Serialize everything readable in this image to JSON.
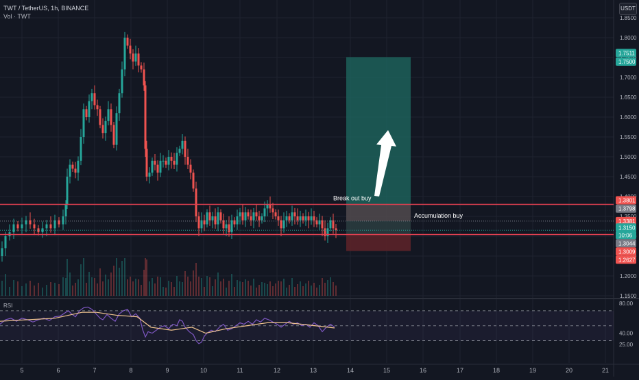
{
  "header": {
    "symbol_line": "TWT / TetherUS, 1h, BINANCE",
    "volume_line": "Vol · TWT",
    "currency_button": "USDT"
  },
  "colors": {
    "background": "#131722",
    "up": "#26a69a",
    "down": "#ef5350",
    "grid": "#1f2330",
    "resistance": "#e04050",
    "rsi_line": "#7e57c2",
    "rsi_ma": "#f2c58f",
    "target_zone": "#1f6b62",
    "entry_zone": "#514a4d",
    "stop_zone": "#5b2229"
  },
  "chart_data": {
    "type": "candlestick",
    "x_ticks": [
      "5",
      "6",
      "7",
      "8",
      "9",
      "10",
      "11",
      "12",
      "13",
      "14",
      "15",
      "16",
      "17",
      "18",
      "19",
      "20",
      "21"
    ],
    "y_ticks": [
      "1.8500",
      "1.8000",
      "1.7500",
      "1.7000",
      "1.6500",
      "1.6000",
      "1.5500",
      "1.5000",
      "1.4500",
      "1.4000",
      "1.3500",
      "1.3000",
      "1.2500",
      "1.2000",
      "1.1500"
    ],
    "ylim": [
      1.15,
      1.86
    ],
    "rsi_ticks": [
      "80.00",
      "40.00",
      "25.00"
    ],
    "rsi_ylim": [
      20,
      82
    ],
    "price_series": [
      [
        0,
        1.25
      ],
      [
        3,
        1.27
      ],
      [
        8,
        1.3
      ],
      [
        14,
        1.31
      ],
      [
        20,
        1.33
      ],
      [
        26,
        1.32
      ],
      [
        32,
        1.33
      ],
      [
        38,
        1.34
      ],
      [
        44,
        1.33
      ],
      [
        50,
        1.32
      ],
      [
        56,
        1.31
      ],
      [
        62,
        1.32
      ],
      [
        68,
        1.33
      ],
      [
        74,
        1.32
      ],
      [
        80,
        1.34
      ],
      [
        86,
        1.33
      ],
      [
        92,
        1.35
      ],
      [
        96,
        1.38
      ],
      [
        98,
        1.45
      ],
      [
        102,
        1.48
      ],
      [
        106,
        1.47
      ],
      [
        110,
        1.46
      ],
      [
        114,
        1.49
      ],
      [
        118,
        1.55
      ],
      [
        122,
        1.62
      ],
      [
        126,
        1.6
      ],
      [
        130,
        1.64
      ],
      [
        134,
        1.66
      ],
      [
        138,
        1.63
      ],
      [
        142,
        1.62
      ],
      [
        146,
        1.58
      ],
      [
        150,
        1.56
      ],
      [
        154,
        1.59
      ],
      [
        158,
        1.62
      ],
      [
        162,
        1.58
      ],
      [
        166,
        1.53
      ],
      [
        170,
        1.61
      ],
      [
        174,
        1.66
      ],
      [
        178,
        1.72
      ],
      [
        182,
        1.8
      ],
      [
        186,
        1.78
      ],
      [
        190,
        1.76
      ],
      [
        194,
        1.74
      ],
      [
        198,
        1.76
      ],
      [
        202,
        1.73
      ],
      [
        206,
        1.72
      ],
      [
        210,
        1.68
      ],
      [
        212,
        1.52
      ],
      [
        214,
        1.45
      ],
      [
        218,
        1.46
      ],
      [
        222,
        1.49
      ],
      [
        226,
        1.48
      ],
      [
        230,
        1.46
      ],
      [
        234,
        1.49
      ],
      [
        238,
        1.49
      ],
      [
        242,
        1.48
      ],
      [
        246,
        1.5
      ],
      [
        250,
        1.49
      ],
      [
        254,
        1.48
      ],
      [
        258,
        1.51
      ],
      [
        262,
        1.52
      ],
      [
        266,
        1.54
      ],
      [
        270,
        1.5
      ],
      [
        274,
        1.48
      ],
      [
        278,
        1.46
      ],
      [
        282,
        1.42
      ],
      [
        286,
        1.35
      ],
      [
        290,
        1.32
      ],
      [
        294,
        1.34
      ],
      [
        298,
        1.33
      ],
      [
        302,
        1.36
      ],
      [
        306,
        1.34
      ],
      [
        310,
        1.35
      ],
      [
        314,
        1.33
      ],
      [
        318,
        1.36
      ],
      [
        322,
        1.34
      ],
      [
        326,
        1.32
      ],
      [
        330,
        1.33
      ],
      [
        334,
        1.31
      ],
      [
        338,
        1.34
      ],
      [
        342,
        1.33
      ],
      [
        346,
        1.35
      ],
      [
        350,
        1.36
      ],
      [
        354,
        1.34
      ],
      [
        358,
        1.36
      ],
      [
        362,
        1.35
      ],
      [
        366,
        1.34
      ],
      [
        370,
        1.36
      ],
      [
        374,
        1.35
      ],
      [
        378,
        1.34
      ],
      [
        382,
        1.35
      ],
      [
        386,
        1.37
      ],
      [
        390,
        1.38
      ],
      [
        394,
        1.37
      ],
      [
        398,
        1.36
      ],
      [
        402,
        1.35
      ],
      [
        406,
        1.34
      ],
      [
        410,
        1.32
      ],
      [
        414,
        1.34
      ],
      [
        418,
        1.35
      ],
      [
        422,
        1.34
      ],
      [
        426,
        1.36
      ],
      [
        430,
        1.35
      ],
      [
        434,
        1.34
      ],
      [
        438,
        1.35
      ],
      [
        442,
        1.34
      ],
      [
        446,
        1.35
      ],
      [
        450,
        1.34
      ],
      [
        454,
        1.35
      ],
      [
        458,
        1.34
      ],
      [
        462,
        1.33
      ],
      [
        466,
        1.34
      ],
      [
        470,
        1.32
      ],
      [
        474,
        1.3
      ],
      [
        478,
        1.32
      ],
      [
        482,
        1.34
      ],
      [
        486,
        1.32
      ],
      [
        490,
        1.315
      ]
    ],
    "rsi_series": [
      [
        0,
        52
      ],
      [
        8,
        58
      ],
      [
        16,
        60
      ],
      [
        24,
        56
      ],
      [
        32,
        60
      ],
      [
        40,
        58
      ],
      [
        48,
        55
      ],
      [
        56,
        58
      ],
      [
        64,
        60
      ],
      [
        72,
        57
      ],
      [
        80,
        62
      ],
      [
        88,
        63
      ],
      [
        96,
        68
      ],
      [
        100,
        70
      ],
      [
        104,
        66
      ],
      [
        110,
        62
      ],
      [
        116,
        70
      ],
      [
        122,
        74
      ],
      [
        128,
        75
      ],
      [
        134,
        72
      ],
      [
        140,
        66
      ],
      [
        146,
        60
      ],
      [
        150,
        58
      ],
      [
        156,
        65
      ],
      [
        162,
        60
      ],
      [
        168,
        56
      ],
      [
        174,
        66
      ],
      [
        180,
        70
      ],
      [
        186,
        72
      ],
      [
        192,
        62
      ],
      [
        198,
        66
      ],
      [
        204,
        60
      ],
      [
        208,
        45
      ],
      [
        212,
        35
      ],
      [
        216,
        42
      ],
      [
        222,
        40
      ],
      [
        228,
        44
      ],
      [
        234,
        48
      ],
      [
        240,
        50
      ],
      [
        246,
        46
      ],
      [
        252,
        52
      ],
      [
        258,
        50
      ],
      [
        262,
        58
      ],
      [
        266,
        56
      ],
      [
        270,
        48
      ],
      [
        276,
        42
      ],
      [
        282,
        38
      ],
      [
        286,
        30
      ],
      [
        290,
        26
      ],
      [
        294,
        28
      ],
      [
        298,
        36
      ],
      [
        302,
        40
      ],
      [
        308,
        44
      ],
      [
        314,
        42
      ],
      [
        320,
        48
      ],
      [
        326,
        52
      ],
      [
        332,
        44
      ],
      [
        338,
        46
      ],
      [
        344,
        50
      ],
      [
        350,
        54
      ],
      [
        356,
        52
      ],
      [
        362,
        56
      ],
      [
        368,
        52
      ],
      [
        374,
        58
      ],
      [
        380,
        55
      ],
      [
        386,
        60
      ],
      [
        392,
        58
      ],
      [
        398,
        55
      ],
      [
        404,
        52
      ],
      [
        410,
        48
      ],
      [
        416,
        52
      ],
      [
        422,
        56
      ],
      [
        428,
        52
      ],
      [
        434,
        54
      ],
      [
        440,
        50
      ],
      [
        446,
        52
      ],
      [
        452,
        48
      ],
      [
        458,
        54
      ],
      [
        464,
        50
      ],
      [
        470,
        42
      ],
      [
        476,
        48
      ],
      [
        482,
        52
      ],
      [
        488,
        48
      ]
    ],
    "rsi_ma_series": [
      [
        0,
        56
      ],
      [
        40,
        58
      ],
      [
        80,
        60
      ],
      [
        120,
        68
      ],
      [
        140,
        68
      ],
      [
        170,
        64
      ],
      [
        200,
        62
      ],
      [
        220,
        48
      ],
      [
        250,
        44
      ],
      [
        280,
        48
      ],
      [
        300,
        40
      ],
      [
        330,
        46
      ],
      [
        360,
        50
      ],
      [
        390,
        54
      ],
      [
        420,
        54
      ],
      [
        450,
        51
      ],
      [
        488,
        47
      ]
    ],
    "horizontal_lines": [
      {
        "price": 1.3801,
        "label": "Break out buy"
      },
      {
        "price": 1.3044,
        "label": "Accumulation buy"
      }
    ],
    "position": {
      "target": 1.7511,
      "entry": 1.3798,
      "entry_inner": 1.3381,
      "stop": 1.2627
    },
    "price_labels": [
      {
        "text": "1.7511",
        "price": 1.7511,
        "color": "#26a69a"
      },
      {
        "text": "1.7500",
        "price": 1.75,
        "color": "#26a69a"
      },
      {
        "text": "1.3801",
        "price": 1.3801,
        "color": "#ef5350"
      },
      {
        "text": "1.3798",
        "price": 1.3798,
        "color": "#787b86"
      },
      {
        "text": "1.3381",
        "price": 1.3381,
        "color": "#ef5350"
      },
      {
        "text": "1.3150",
        "price": 1.315,
        "color": "#26a69a"
      },
      {
        "text": "10:06",
        "price": 1.315,
        "color": "#26a69a"
      },
      {
        "text": "1.3044",
        "price": 1.3044,
        "color": "#787b86"
      },
      {
        "text": "1.3009",
        "price": 1.3009,
        "color": "#ef5350"
      },
      {
        "text": "1.2627",
        "price": 1.2627,
        "color": "#ef5350"
      }
    ]
  },
  "rsi_label": "RSI"
}
